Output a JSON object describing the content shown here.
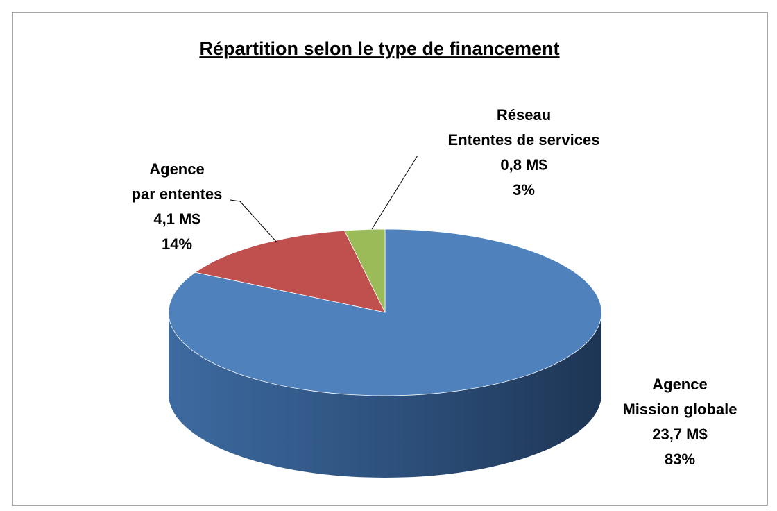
{
  "chart_data": {
    "type": "pie",
    "title": "Répartition selon le type de financement",
    "categories": [
      [
        "Agence",
        "Mission globale"
      ],
      [
        "Agence",
        "par ententes"
      ],
      [
        "Réseau",
        "Ententes de services"
      ]
    ],
    "amount_labels": [
      "23,7 M$",
      "4,1 M$",
      "0,8 M$"
    ],
    "values": [
      83,
      14,
      3
    ],
    "value_labels": [
      "83%",
      "14%",
      "3%"
    ],
    "colors": [
      "#4f81bd",
      "#c0504d",
      "#9bbb59"
    ]
  }
}
